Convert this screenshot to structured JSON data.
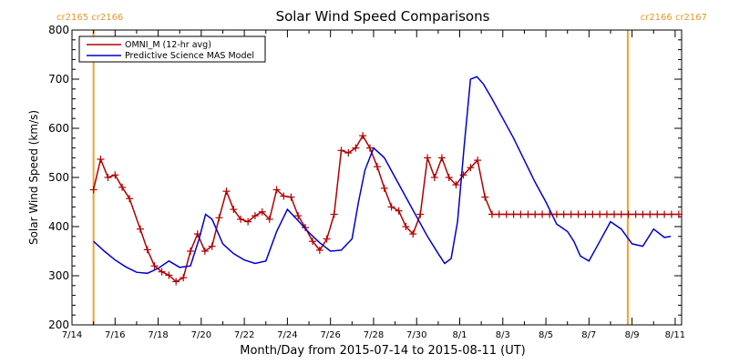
{
  "chart_data": {
    "type": "line",
    "title": "Solar Wind Speed Comparisons",
    "xlabel": "Month/Day from 2015-07-14 to 2015-08-11 (UT)",
    "ylabel": "Solar Wind Speed (km/s)",
    "x_tick_labels": [
      "7/14",
      "7/16",
      "7/18",
      "7/20",
      "7/22",
      "7/24",
      "7/26",
      "7/28",
      "7/30",
      "8/1",
      "8/3",
      "8/5",
      "8/7",
      "8/9",
      "8/11"
    ],
    "x_tick_days": [
      0,
      2,
      4,
      6,
      8,
      10,
      12,
      14,
      16,
      18,
      20,
      22,
      24,
      26,
      28
    ],
    "xlim_days": [
      0,
      28.3
    ],
    "ylim": [
      200,
      800
    ],
    "y_ticks": [
      200,
      300,
      400,
      500,
      600,
      700,
      800
    ],
    "legend_position": "top-left",
    "carrington_markers": [
      {
        "day": 1.0,
        "label": "cr2165 cr2166",
        "side": "left"
      },
      {
        "day": 25.8,
        "label": "cr2166 cr2167",
        "side": "right"
      }
    ],
    "colors": {
      "omni": "#b00000",
      "model": "#0000cc",
      "marker": "#f0a030"
    },
    "series": [
      {
        "name": "OMNI_M (12-hr avg)",
        "key": "omni",
        "x": [
          1.0,
          1.33,
          1.67,
          2.0,
          2.33,
          2.67,
          3.17,
          3.5,
          3.83,
          4.17,
          4.5,
          4.83,
          5.17,
          5.5,
          5.83,
          6.17,
          6.5,
          6.83,
          7.17,
          7.5,
          7.83,
          8.17,
          8.5,
          8.83,
          9.17,
          9.5,
          9.83,
          10.17,
          10.5,
          10.83,
          11.17,
          11.5,
          11.83,
          12.17,
          12.5,
          12.83,
          13.17,
          13.5,
          13.83,
          14.17,
          14.5,
          14.83,
          15.17,
          15.5,
          15.83,
          16.17,
          16.5,
          16.83,
          17.17,
          17.5,
          17.83,
          18.17,
          18.5,
          18.83,
          19.17,
          19.5,
          19.83,
          20.17,
          20.5,
          20.83,
          21.17,
          21.5,
          21.83,
          22.17,
          22.5,
          22.83,
          23.17,
          23.5,
          23.83,
          24.17,
          24.5,
          24.83,
          25.17,
          25.5,
          25.83,
          26.17,
          26.5,
          26.83,
          27.17,
          27.5,
          27.83,
          28.17
        ],
        "y": [
          475,
          537,
          500,
          505,
          480,
          457,
          395,
          353,
          320,
          308,
          301,
          288,
          296,
          350,
          385,
          350,
          360,
          418,
          472,
          435,
          415,
          410,
          422,
          430,
          415,
          475,
          462,
          460,
          422,
          398,
          370,
          352,
          375,
          425,
          555,
          550,
          560,
          585,
          560,
          522,
          478,
          440,
          432,
          400,
          385,
          425,
          540,
          500,
          540,
          500,
          485,
          505,
          520,
          535,
          460,
          425,
          425,
          425,
          425,
          425,
          425,
          425,
          425,
          425,
          425,
          425,
          425,
          425,
          425,
          425,
          425,
          425,
          425,
          425,
          425,
          425,
          425,
          425,
          425,
          425,
          425,
          425
        ]
      },
      {
        "name": "Predictive Science MAS Model",
        "key": "model",
        "x": [
          1.0,
          1.5,
          2.0,
          2.5,
          3.0,
          3.5,
          4.0,
          4.5,
          5.0,
          5.5,
          5.9,
          6.2,
          6.5,
          7.0,
          7.5,
          8.0,
          8.5,
          9.0,
          9.5,
          10.0,
          10.5,
          11.0,
          11.5,
          12.0,
          12.5,
          13.0,
          13.3,
          13.6,
          14.0,
          14.5,
          15.0,
          15.5,
          16.0,
          16.5,
          17.0,
          17.3,
          17.6,
          17.9,
          18.2,
          18.5,
          18.8,
          19.1,
          19.5,
          20.0,
          20.5,
          21.0,
          21.5,
          22.0,
          22.5,
          23.0,
          23.3,
          23.6,
          24.0,
          24.5,
          25.0,
          25.5,
          26.0,
          26.5,
          27.0,
          27.5,
          27.8
        ],
        "y": [
          370,
          350,
          332,
          318,
          307,
          305,
          315,
          330,
          317,
          320,
          375,
          425,
          415,
          365,
          345,
          332,
          325,
          330,
          390,
          435,
          412,
          388,
          367,
          350,
          352,
          375,
          450,
          515,
          560,
          540,
          500,
          460,
          420,
          380,
          345,
          325,
          335,
          410,
          560,
          700,
          705,
          690,
          660,
          620,
          580,
          535,
          490,
          450,
          405,
          390,
          370,
          340,
          330,
          370,
          410,
          395,
          365,
          360,
          395,
          378,
          380
        ]
      }
    ]
  }
}
